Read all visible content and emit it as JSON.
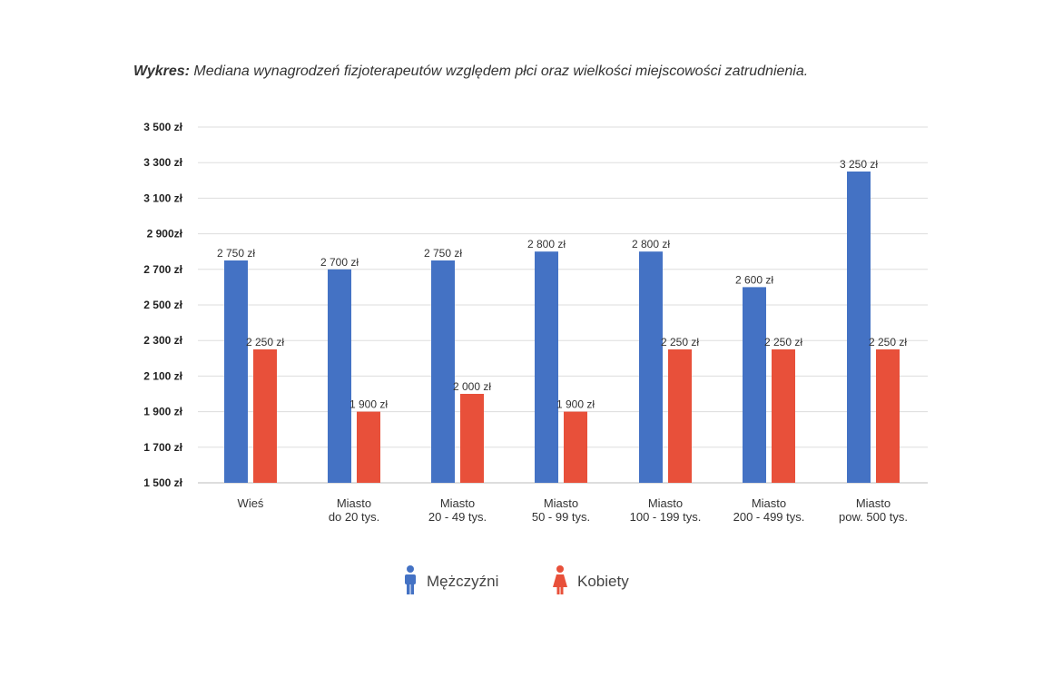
{
  "title": {
    "prefix": "Wykres:",
    "text": "Mediana wynagrodzeń fizjoterapeutów względem płci oraz wielkości miejscowości zatrudnienia."
  },
  "legend": [
    {
      "name": "Mężczyźni",
      "icon": "male-figure-icon",
      "color": "#4472c4"
    },
    {
      "name": "Kobiety",
      "icon": "female-figure-icon",
      "color": "#e8503a"
    }
  ],
  "chart_data": {
    "type": "bar",
    "title": "Wykres: Mediana wynagrodzeń fizjoterapeutów względem płci oraz wielkości miejscowości zatrudnienia.",
    "xlabel": "",
    "ylabel": "",
    "ylim": [
      1500,
      3500
    ],
    "grid": true,
    "legend_position": "bottom",
    "y_ticks": [
      1500,
      1700,
      1900,
      2100,
      2300,
      2500,
      2700,
      2900,
      3100,
      3300,
      3500
    ],
    "y_tick_labels": [
      "1 500 zł",
      "1 700 zł",
      "1 900 zł",
      "2 100 zł",
      "2 300 zł",
      "2 500 zł",
      "2 700 zł",
      "2 900zł",
      "3 100 zł",
      "3 300 zł",
      "3 500 zł"
    ],
    "categories": [
      [
        "Wieś"
      ],
      [
        "Miasto",
        "do 20 tys."
      ],
      [
        "Miasto",
        "20 - 49 tys."
      ],
      [
        "Miasto",
        "50 - 99 tys."
      ],
      [
        "Miasto",
        "100 - 199 tys."
      ],
      [
        "Miasto",
        "200 - 499 tys."
      ],
      [
        "Miasto",
        "pow. 500 tys."
      ]
    ],
    "series": [
      {
        "name": "Mężczyźni",
        "color": "#4472c4",
        "values": [
          2750,
          2700,
          2750,
          2800,
          2800,
          2600,
          3250
        ],
        "labels": [
          "2 750 zł",
          "2 700 zł",
          "2 750 zł",
          "2 800 zł",
          "2 800 zł",
          "2 600 zł",
          "3 250 zł"
        ]
      },
      {
        "name": "Kobiety",
        "color": "#e8503a",
        "values": [
          2250,
          1900,
          2000,
          1900,
          2250,
          2250,
          2250
        ],
        "labels": [
          "2 250 zł",
          "1 900 zł",
          "2 000 zł",
          "1 900 zł",
          "2 250 zł",
          "2 250 zł",
          "2 250 zł"
        ]
      }
    ]
  }
}
